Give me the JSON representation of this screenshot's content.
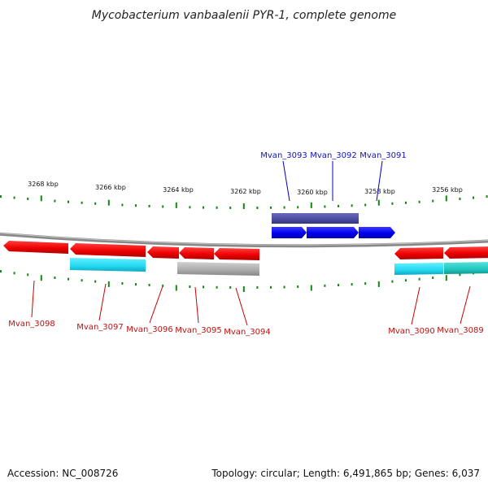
{
  "header": {
    "title": "Mycobacterium vanbaalenii PYR-1, complete genome"
  },
  "footer": {
    "accession": "Accession: NC_008726",
    "summary": "Topology: circular; Length: 6,491,865 bp; Genes: 6,037"
  },
  "colors": {
    "forward_gene": "#1a1aff",
    "forward_feature": "#4a4aa0",
    "reverse_gene": "#ff1a1a",
    "reverse_cyan": "#22d8f0",
    "reverse_teal": "#22c8c0",
    "reverse_gray": "#aaaaaa",
    "forward_label": "#1010c0",
    "reverse_label": "#c01010",
    "tick": "#118811",
    "backbone": "#888888"
  },
  "ticks": {
    "labels": [
      "3268 kbp",
      "3266 kbp",
      "3264 kbp",
      "3262 kbp",
      "3260 kbp",
      "3258 kbp",
      "3256 kbp"
    ]
  },
  "genes_forward": [
    {
      "name": "Mvan_3093"
    },
    {
      "name": "Mvan_3092"
    },
    {
      "name": "Mvan_3091"
    }
  ],
  "genes_reverse": [
    {
      "name": "Mvan_3098"
    },
    {
      "name": "Mvan_3097"
    },
    {
      "name": "Mvan_3096"
    },
    {
      "name": "Mvan_3095"
    },
    {
      "name": "Mvan_3094"
    },
    {
      "name": "Mvan_3090"
    },
    {
      "name": "Mvan_3089"
    }
  ]
}
